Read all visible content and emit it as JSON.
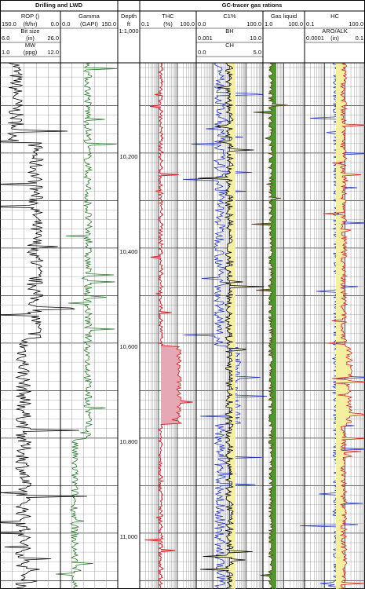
{
  "groups": [
    {
      "title": "Drilling and LWD"
    },
    {
      "title": "GC-tracer gas rations"
    }
  ],
  "tracks": [
    {
      "title": "ROP ()",
      "rows": [
        [
          "150.0",
          "(ft/hr)",
          "0.0"
        ],
        [
          "Bit size"
        ],
        [
          "6.0",
          "(in)",
          "26.0"
        ],
        [
          "MW"
        ],
        [
          "1.0",
          "(ppg)",
          "12.0"
        ]
      ]
    },
    {
      "title": "Gamma",
      "rows": [
        [
          "0.0",
          "(GAPI)",
          "150.0"
        ]
      ]
    },
    {
      "title": "Depth",
      "rows": [
        [
          "ft"
        ],
        [
          "1:1,000"
        ]
      ]
    },
    {
      "title": "THC",
      "rows": [
        [
          "0.1",
          "(%)",
          "100.0"
        ]
      ]
    },
    {
      "title": "C1%",
      "rows": [
        [
          "0.0",
          "",
          "100.0"
        ],
        [
          "BH"
        ],
        [
          "0.001",
          "",
          "10.0"
        ],
        [
          "CH"
        ],
        [
          "0.0",
          "",
          "5.0"
        ]
      ]
    },
    {
      "title": "Gas liquid",
      "rows": [
        [
          "1.0",
          "",
          "100.0"
        ]
      ]
    },
    {
      "title": "HC",
      "rows": [
        [
          "0.1",
          "",
          "100.0"
        ],
        [
          "ARO/ALK"
        ],
        [
          "0.0001",
          "(in)",
          "0.1"
        ]
      ]
    }
  ],
  "depth_labels": [
    "10,200",
    "10,400",
    "10,600",
    "10,800",
    "11,000"
  ]
}
